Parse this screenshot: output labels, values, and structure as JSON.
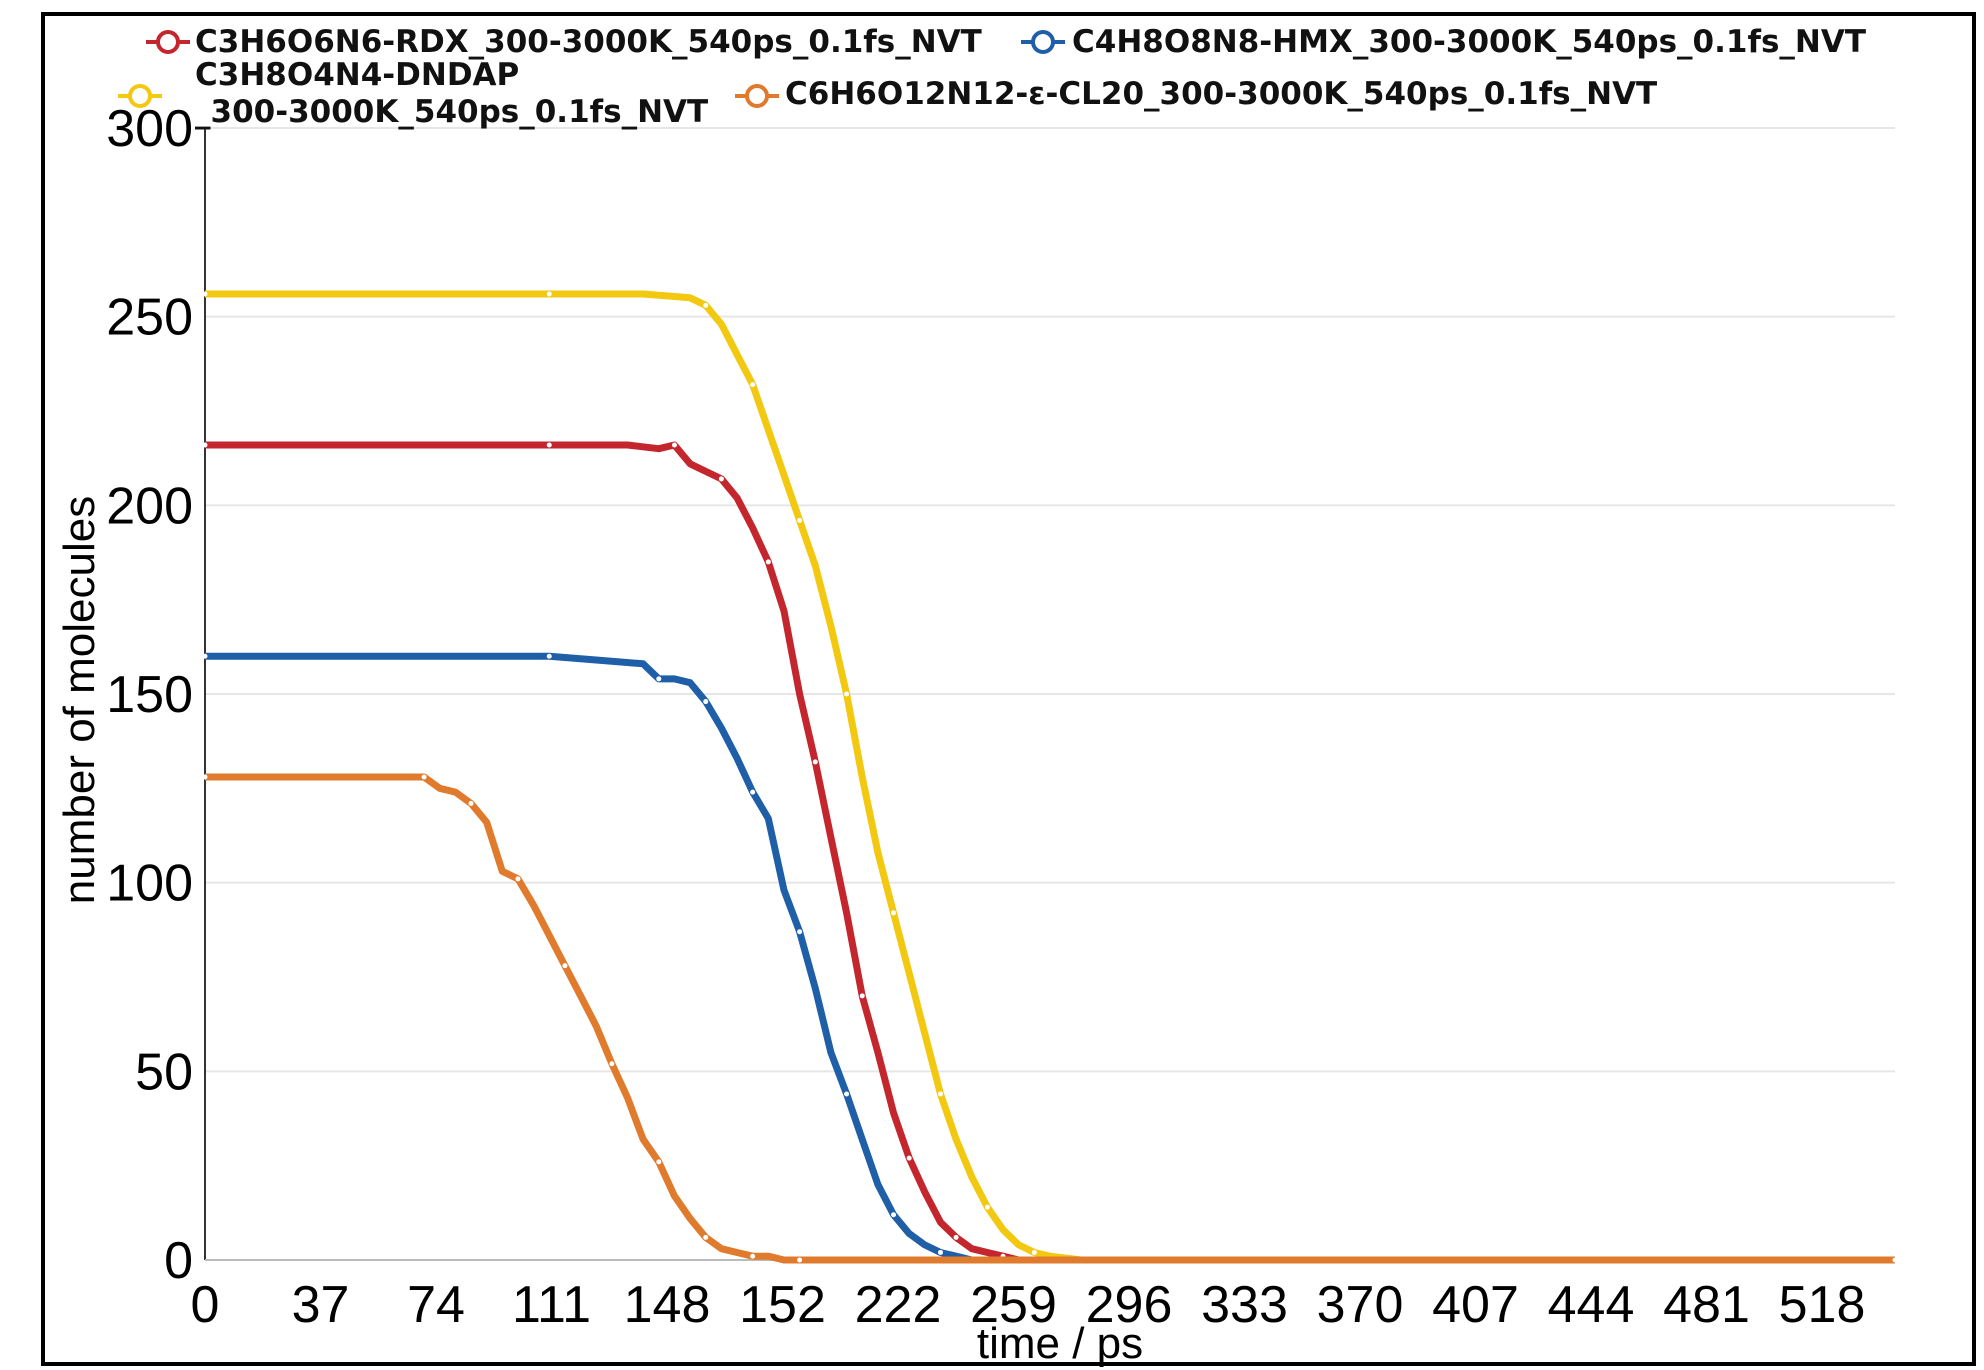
{
  "chart_data": {
    "type": "line",
    "xlabel": "time / ps",
    "ylabel": "number of molecules",
    "ylim": [
      0,
      300
    ],
    "xlim": [
      0,
      540
    ],
    "y_ticks": [
      "0",
      "50",
      "100",
      "150",
      "200",
      "250",
      "300"
    ],
    "x_ticks": [
      "0",
      "37",
      "74",
      "111",
      "148",
      "152",
      "222",
      "259",
      "296",
      "333",
      "370",
      "407",
      "444",
      "481",
      "518"
    ],
    "grid": "horizontal",
    "legend_position": "top",
    "series": [
      {
        "name": "C3H6O6N6-RDX_300-3000K_540ps_0.1fs_NVT",
        "color": "#c4262e",
        "x": [
          0,
          40,
          80,
          110,
          135,
          145,
          150,
          155,
          160,
          165,
          170,
          175,
          180,
          185,
          190,
          195,
          200,
          205,
          210,
          215,
          220,
          225,
          230,
          235,
          240,
          245,
          250,
          255,
          260,
          270,
          280,
          540
        ],
        "y": [
          216,
          216,
          216,
          216,
          216,
          215,
          216,
          211,
          209,
          207,
          202,
          194,
          185,
          172,
          150,
          132,
          112,
          92,
          70,
          55,
          39,
          27,
          18,
          10,
          6,
          3,
          2,
          1,
          0,
          0,
          0,
          0
        ]
      },
      {
        "name": "C4H8O8N8-HMX_300-3000K_540ps_0.1fs_NVT",
        "color": "#1f5fa8",
        "x": [
          0,
          40,
          80,
          110,
          125,
          140,
          145,
          150,
          155,
          160,
          165,
          170,
          175,
          180,
          185,
          190,
          195,
          200,
          205,
          210,
          215,
          220,
          225,
          230,
          235,
          240,
          245,
          250,
          255,
          540
        ],
        "y": [
          160,
          160,
          160,
          160,
          159,
          158,
          154,
          154,
          153,
          148,
          141,
          133,
          124,
          117,
          98,
          87,
          72,
          55,
          44,
          32,
          20,
          12,
          7,
          4,
          2,
          1,
          0,
          0,
          0,
          0
        ]
      },
      {
        "name": "C3H8O4N4-DNDAP\n_300-3000K_540ps_0.1fs_NVT",
        "color": "#f2c811",
        "x": [
          0,
          40,
          80,
          110,
          140,
          155,
          160,
          165,
          170,
          175,
          180,
          185,
          190,
          195,
          200,
          205,
          210,
          215,
          220,
          225,
          230,
          235,
          240,
          245,
          250,
          255,
          260,
          265,
          270,
          280,
          540
        ],
        "y": [
          256,
          256,
          256,
          256,
          256,
          255,
          253,
          248,
          240,
          232,
          220,
          208,
          196,
          184,
          168,
          150,
          128,
          108,
          92,
          76,
          60,
          44,
          32,
          22,
          14,
          8,
          4,
          2,
          1,
          0,
          0
        ]
      },
      {
        "name": "C6H6O12N12-ε-CL20_300-3000K_540ps_0.1fs_NVT",
        "color": "#e07a2c",
        "x": [
          0,
          30,
          60,
          70,
          75,
          80,
          85,
          90,
          95,
          100,
          105,
          110,
          115,
          120,
          125,
          130,
          135,
          140,
          145,
          150,
          155,
          160,
          165,
          170,
          175,
          180,
          185,
          190,
          195,
          200,
          540
        ],
        "y": [
          128,
          128,
          128,
          128,
          125,
          124,
          121,
          116,
          103,
          101,
          94,
          86,
          78,
          70,
          62,
          52,
          43,
          32,
          26,
          17,
          11,
          6,
          3,
          2,
          1,
          1,
          0,
          0,
          0,
          0,
          0
        ]
      }
    ]
  }
}
